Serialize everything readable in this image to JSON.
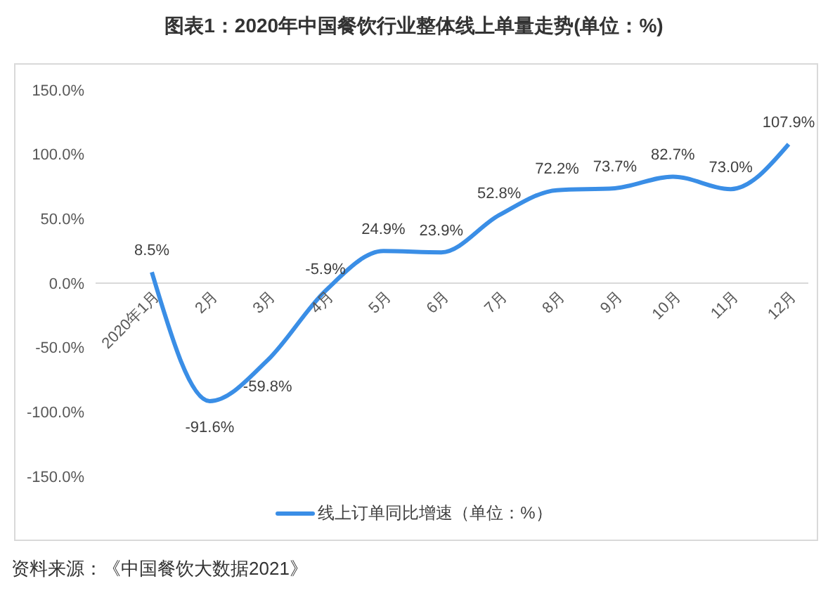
{
  "chart_data": {
    "type": "line",
    "title": "图表1：2020年中国餐饮行业整体线上单量走势(单位：%)",
    "categories": [
      "2020年1月",
      "2月",
      "3月",
      "4月",
      "5月",
      "6月",
      "7月",
      "8月",
      "9月",
      "10月",
      "11月",
      "12月"
    ],
    "series": [
      {
        "name": "线上订单同比增速（单位：%）",
        "color": "#3a8ee6",
        "values": [
          8.5,
          -91.6,
          -59.8,
          -5.9,
          24.9,
          23.9,
          52.8,
          72.2,
          73.7,
          82.7,
          73.0,
          107.9
        ],
        "value_labels": [
          "8.5%",
          "-91.6%",
          "-59.8%",
          "-5.9%",
          "24.9%",
          "23.9%",
          "52.8%",
          "72.2%",
          "73.7%",
          "82.7%",
          "73.0%",
          "107.9%"
        ]
      }
    ],
    "ylim": [
      -150,
      150
    ],
    "yticks": [
      {
        "value": -150,
        "label": "-150.0%"
      },
      {
        "value": -100,
        "label": "-100.0%"
      },
      {
        "value": -50,
        "label": "-50.0%"
      },
      {
        "value": 0,
        "label": "0.0%"
      },
      {
        "value": 50,
        "label": "50.0%"
      },
      {
        "value": 100,
        "label": "100.0%"
      },
      {
        "value": 150,
        "label": "150.0%"
      }
    ],
    "legend": "bottom",
    "annotations": [
      "资料来源：《中国餐饮大数据2021》"
    ]
  }
}
